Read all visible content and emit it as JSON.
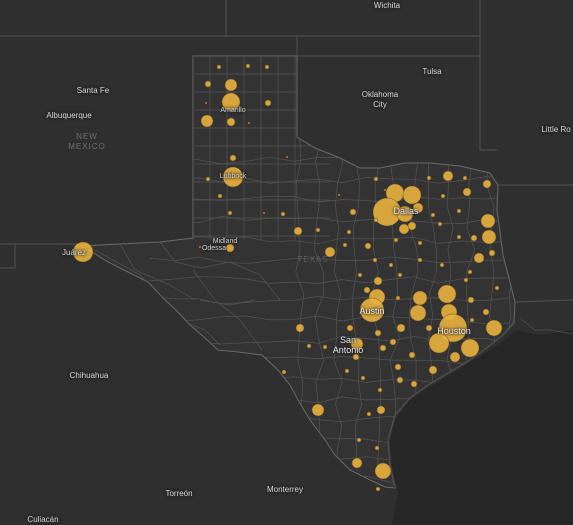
{
  "colors": {
    "water": "#262626",
    "land": "#2f2f2f",
    "texas_fill": "#333333",
    "county_line": "#555555",
    "state_line": "#505050",
    "symbol_fill": "#e8b13e",
    "symbol_stroke": "#6b5020"
  },
  "places": {
    "wichita": "Wichita",
    "tulsa": "Tulsa",
    "santa_fe": "Santa Fe",
    "albuquerque": "Albuquerque",
    "oklahoma_city": "Oklahoma City",
    "little_rock": "Little Ro",
    "new_mexico": "NEW MEXICO",
    "texas": "TEXAS",
    "amarillo": "Amarillo",
    "lubbock": "Lubbock",
    "midland": "Midland",
    "odessa": "Odessa",
    "juarez": "Juárez",
    "dallas": "Dallas",
    "austin": "Austin",
    "houston": "Houston",
    "san_antonio": "San Antonio",
    "chihuahua": "Chihuahua",
    "torreon": "Torreón",
    "monterrey": "Monterrey",
    "culiacan": "Culiacán"
  },
  "symbols": [
    {
      "place": "Dallas",
      "size": 5
    },
    {
      "place": "Houston",
      "size": 4
    },
    {
      "place": "Austin",
      "size": 3
    },
    {
      "place": "San Antonio",
      "size": 3
    },
    {
      "place": "Juárez",
      "size": 3
    },
    {
      "place": "Lubbock",
      "size": 3
    },
    {
      "place": "Amarillo",
      "size": 3
    }
  ]
}
